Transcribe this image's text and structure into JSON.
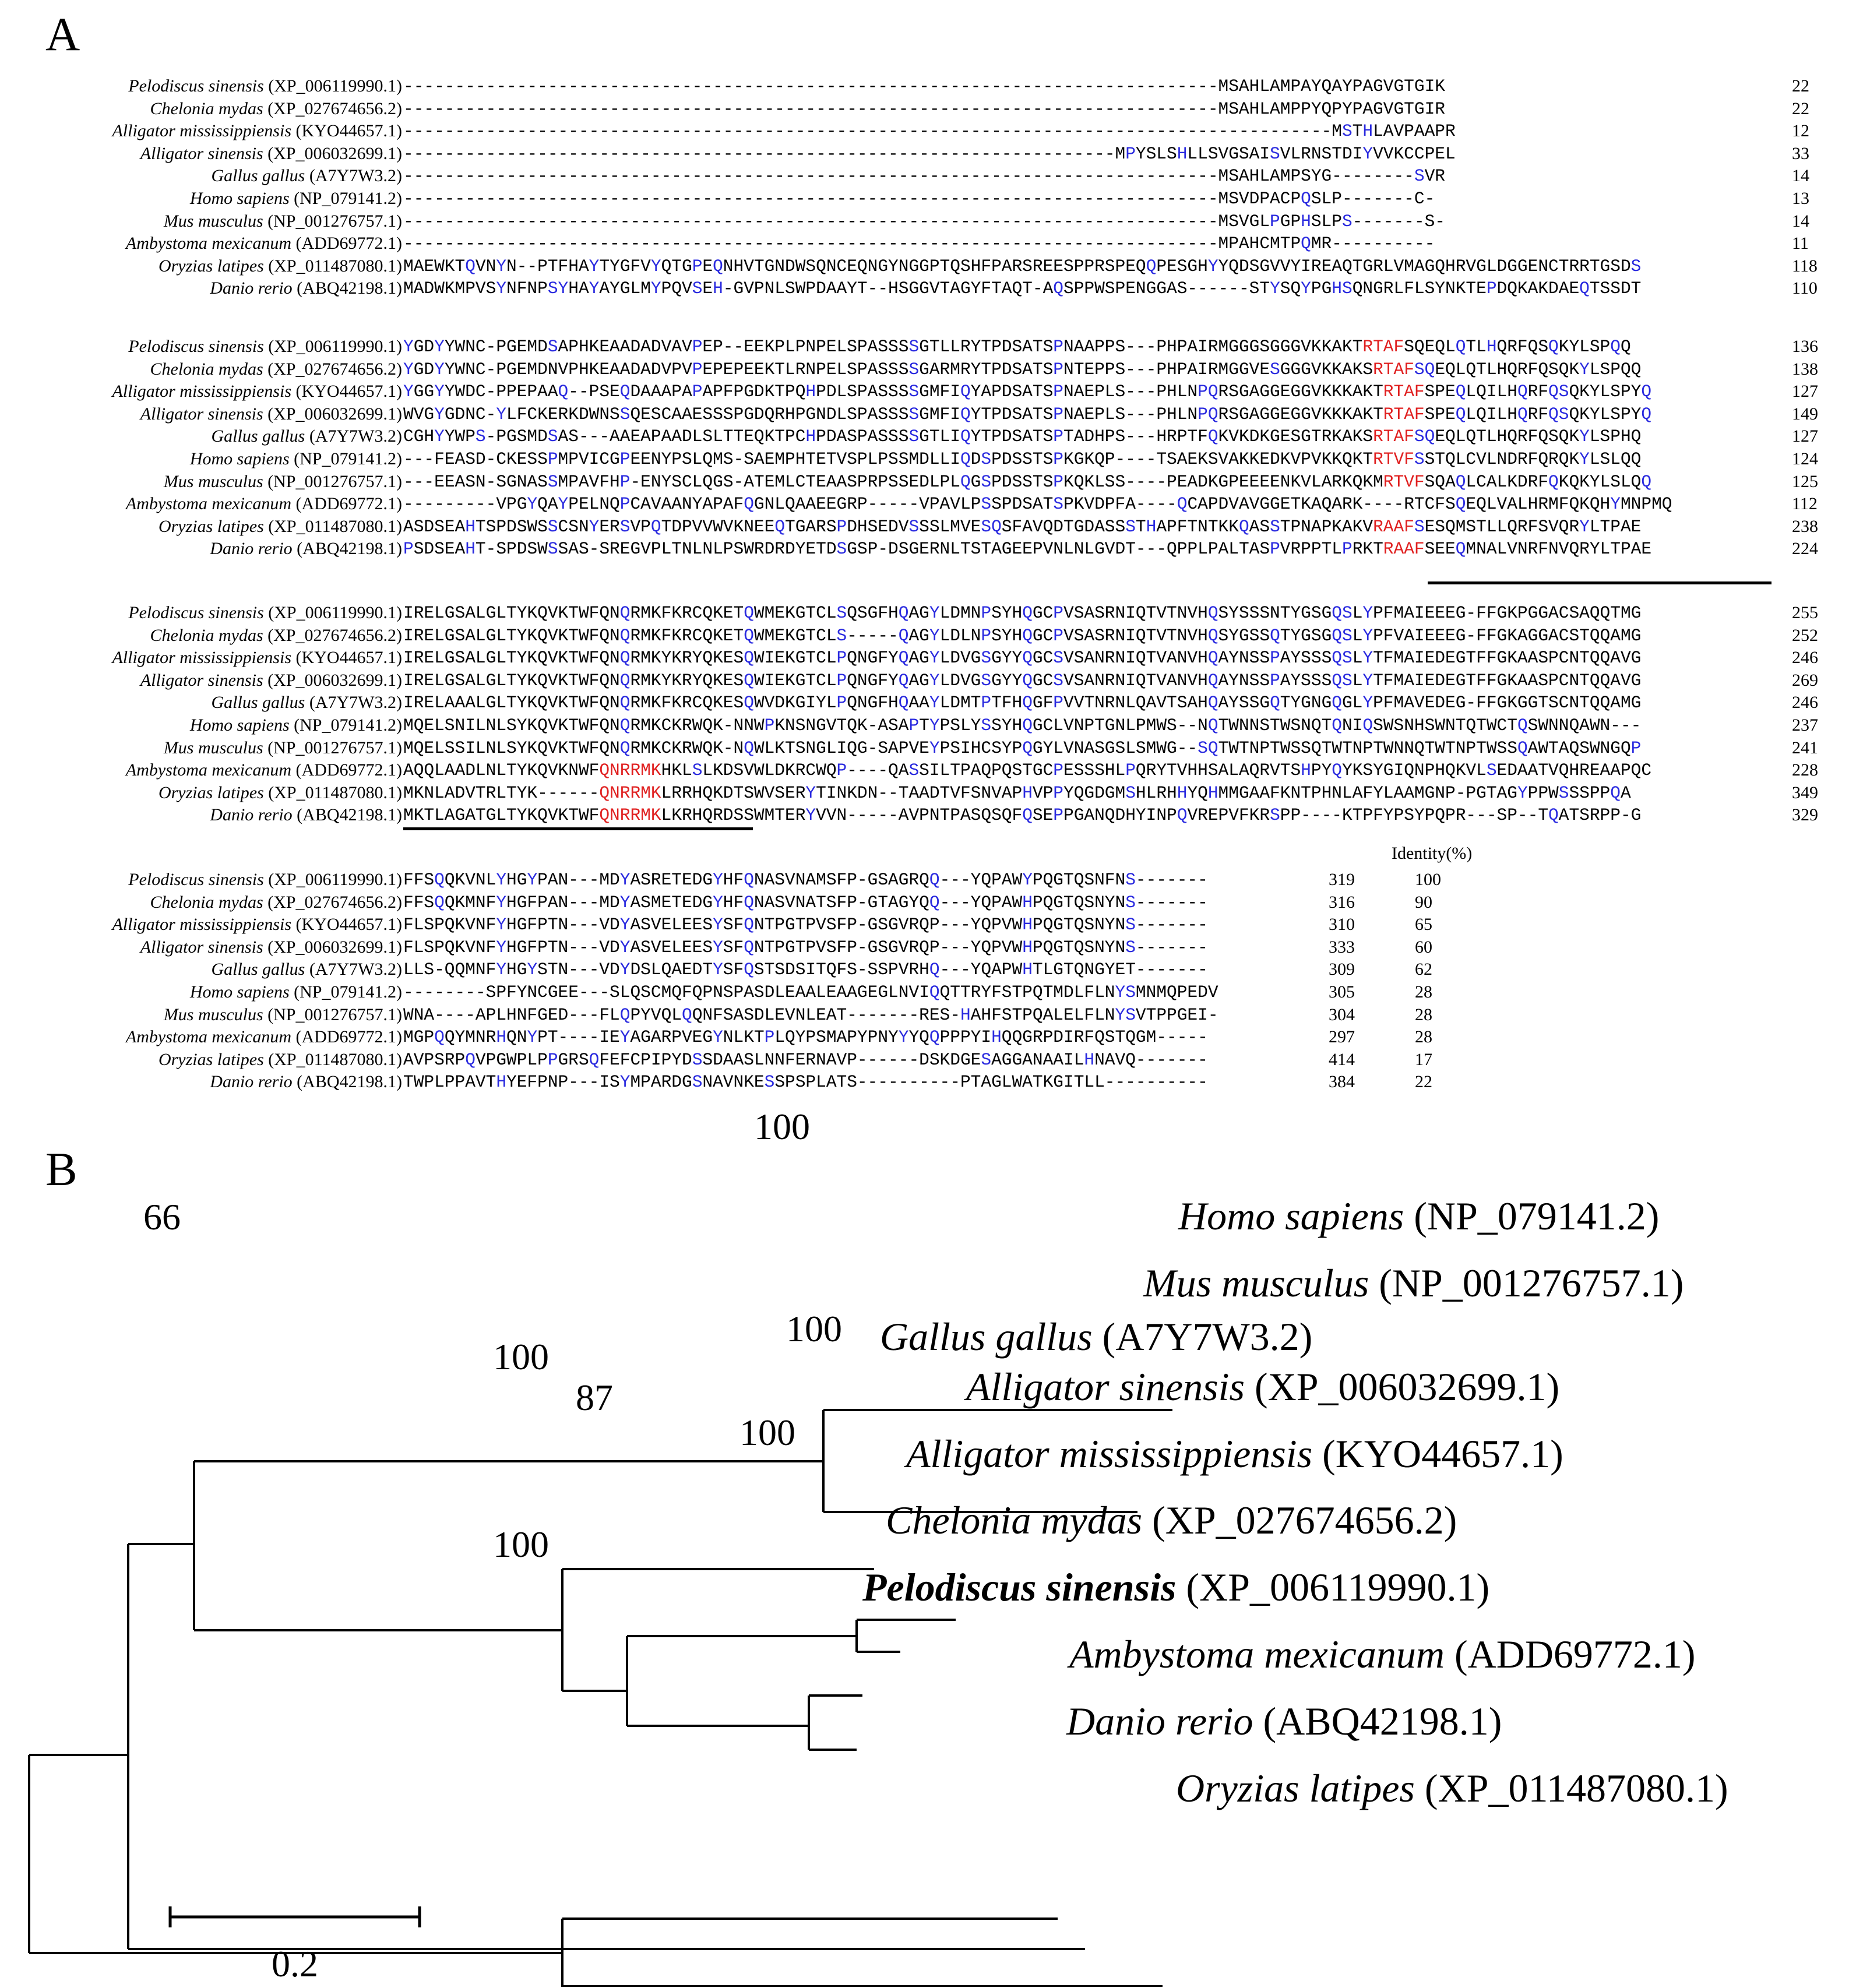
{
  "panel_a": {
    "label": "A",
    "identity_header": "Identity(%)",
    "blocks": [
      {
        "rows": [
          {
            "sp": "Pelodiscus sinensis",
            "acc": "(XP_006119990.1)",
            "seq": "-------------------------------------------------------------------------------MSAHLAMPAYQAYPAGVGTGIK",
            "end": "22"
          },
          {
            "sp": "Chelonia mydas",
            "acc": "(XP_027674656.2)",
            "seq": "-------------------------------------------------------------------------------MSAHLAMPPYQPYPAGVGTGIR",
            "end": "22"
          },
          {
            "sp": "Alligator mississippiensis",
            "acc": "(KYO44657.1)",
            "seq": "------------------------------------------------------------------------------------------MSTHLAVPAAPR",
            "end": "12"
          },
          {
            "sp": "Alligator sinensis",
            "acc": "(XP_006032699.1)",
            "seq": "---------------------------------------------------------------------MPYSLSHLLSVGSAISVLRNSTDIYVVKCCPEL",
            "end": "33"
          },
          {
            "sp": "Gallus gallus",
            "acc": "(A7Y7W3.2)",
            "seq": "-------------------------------------------------------------------------------MSAHLAMPSYG--------SVR",
            "end": "14"
          },
          {
            "sp": "Homo sapiens",
            "acc": "(NP_079141.2)",
            "seq": "-------------------------------------------------------------------------------MSVDPACPQSLP-------C-",
            "end": "13"
          },
          {
            "sp": "Mus musculus",
            "acc": "(NP_001276757.1)",
            "seq": "-------------------------------------------------------------------------------MSVGLPGPHSLPS-------S-",
            "end": "14"
          },
          {
            "sp": "Ambystoma mexicanum",
            "acc": "(ADD69772.1)",
            "seq": "-------------------------------------------------------------------------------MPAHCMTPQMR----------",
            "end": "11"
          },
          {
            "sp": "Oryzias latipes",
            "acc": "(XP_011487080.1)",
            "seq": "MAEWKTQVNYN--PTFHAYTYGFVYQTGPEQNHVTGNDWSQNCEQNGYNGGPTQSHFPARSREESPPRSPEQQPESGHYYQDSGVVYIREAQTGRLVMAGQHRVGLDGGENCTRRTGSDS",
            "end": "118"
          },
          {
            "sp": "Danio rerio",
            "acc": "(ABQ42198.1)",
            "seq": "MADWKMPVSYNFNPSYHAYAYGLMYPQVSEH-GVPNLSWPDAAYT--HSGGVTAGYFTAQT-AQSPPWSPENGGAS------STYSQYPGHSQNGRLFLSYNKTEPDQKAKDAEQTSSDT",
            "end": "110"
          }
        ]
      },
      {
        "rows": [
          {
            "sp": "Pelodiscus sinensis",
            "acc": "(XP_006119990.1)",
            "seq": "YGDYYWNC-PGEMDSAPHKEAADADVAVPEP--EEKPLPNPELSPASSSSGTLLRYTPDSATSPNAAPPS---PHPAIRMGGGSGGGVKKAKTRTAFSQEQLQTLHQRFQSQKYLSPQQ",
            "end": "136"
          },
          {
            "sp": "Chelonia mydas",
            "acc": "(XP_027674656.2)",
            "seq": "YGDYYWNC-PGEMDNVPHKEAADADVPVPEPEPEEKTLRNPELSPASSSSGARMRYTPDSATSPNTEPPS---PHPAIRMGGVESGGGVKKAKSRTAFSQEQLQTLHQRFQSQKYLSPQQ",
            "end": "138"
          },
          {
            "sp": "Alligator mississippiensis",
            "acc": "(KYO44657.1)",
            "seq": "YGGYYWDC-PPEPAAQ--PSEQDAAAPAPAPFPGDKTPQHPDLSPASSSSGMFIQYAPDSATSPNAEPLS---PHLNPQRSGAGGEGGVKKKAKTRTAFSPEQLQILHQRFQSQKYLSPYQ",
            "end": "127"
          },
          {
            "sp": "Alligator sinensis",
            "acc": "(XP_006032699.1)",
            "seq": "WVGYGDNC-YLFCKERKDWNSSQESCAAESSSPGDQRHPGNDLSPASSSSGMFIQYTPDSATSPNAEPLS---PHLNPQRSGAGGEGGVKKKAKTRTAFSPEQLQILHQRFQSQKYLSPYQ",
            "end": "149"
          },
          {
            "sp": "Gallus gallus",
            "acc": "(A7Y7W3.2)",
            "seq": "CGHYYWPS-PGSMDSAS---AAEAPAADLSLTTEQKTPCHPDASPASSSSGTLIQYTPDSATSPTADHPS---HRPTFQKVKDKGESGTRKAKSRTAFSQEQLQTLHQRFQSQKYLSPHQ",
            "end": "127"
          },
          {
            "sp": "Homo sapiens",
            "acc": "(NP_079141.2)",
            "seq": "---FEASD-CKESSPMPVICGPEENYPSLQMS-SAEMPHTETVSPLPSSMDLLIQDSPDSSTSPKGKQP----TSAEKSVAKKEDKVPVKKQKTRTVFSSTQLCVLNDRFQRQKYLSLQQ",
            "end": "124"
          },
          {
            "sp": "Mus musculus",
            "acc": "(NP_001276757.1)",
            "seq": "---EEASN-SGNASSMPAVFHP-ENYSCLQGS-ATEMLCTEAASPRPSSEDLPLQGSPDSSTSPKQKLSS----PEADKGPEEEENKVLARKQKMRTVFSQAQLCALKDRFQKQKYLSLQQ",
            "end": "125"
          },
          {
            "sp": "Ambystoma mexicanum",
            "acc": "(ADD69772.1)",
            "seq": "---------VPGYQAYPELNQPCAVAANYAPAFQGNLQAAEEGRP-----VPAVLPSSPDSATSPKVDPFA----QCAPDVAVGGETKAQARK----RTCFSQEQLVALHRMFQKQHYMNPMQ",
            "end": "112"
          },
          {
            "sp": "Oryzias latipes",
            "acc": "(XP_011487080.1)",
            "seq": "ASDSEAHTSPDSWSSCSNYERSVPQTDPVVWVKNEEQTGARSPDHSEDVSSSLMVESQSFAVQDTGDASSSTHAPFTNTKKQASSTPNAPKAKVRAAFSESQMSTLLQRFSVQRYLTPAE",
            "end": "238"
          },
          {
            "sp": "Danio rerio",
            "acc": "(ABQ42198.1)",
            "seq": "PSDSEAHT-SPDSWSSAS-SREGVPLTNLNLPSWRDRDYETDSGSP-DSGERNLTSTAGEEPVNLNLGVDT---QPPLPALTASPVRPPTLPRKTRAAFSEEQMNALVNRFNVQRYLTPAE",
            "end": "224"
          }
        ]
      },
      {
        "rows": [
          {
            "sp": "Pelodiscus sinensis",
            "acc": "(XP_006119990.1)",
            "seq": "IRELGSALGLTYKQVKTWFQNQRMKFKRCQKETQWMEKGTCLSQSGFHQAGYLDMNPSYHQGCPVSASRNIQTVTNVHQSYSSSNTYGSGQSLYPFMAIEEEG-FFGKPGGACSAQQTMG",
            "end": "255"
          },
          {
            "sp": "Chelonia mydas",
            "acc": "(XP_027674656.2)",
            "seq": "IRELGSALGLTYKQVKTWFQNQRMKFKRCQKETQWMEKGTCLS-----QAGYLDLNPSYHQGCPVSASRNIQTVTNVHQSYGSSQTYGSGQSLYPFVAIEEEG-FFGKAGGACSTQQAMG",
            "end": "252"
          },
          {
            "sp": "Alligator mississippiensis",
            "acc": "(KYO44657.1)",
            "seq": "IRELGSALGLTYKQVKTWFQNQRMKYKRYQKESQWIEKGTCLPQNGFYQAGYLDVGSGYYQGCSVSANRNIQTVANVHQAYNSSPAYSSSQSLYTFMAIEDEGTFFGKAASPCNTQQAVG",
            "end": "246"
          },
          {
            "sp": "Alligator sinensis",
            "acc": "(XP_006032699.1)",
            "seq": "IRELGSALGLTYKQVKTWFQNQRMKYKRYQKESQWIEKGTCLPQNGFYQAGYLDVGSGYYQGCSVSANRNIQTVANVHQAYNSSPAYSSSQSLYTFMAIEDEGTFFGKAASPCNTQQAVG",
            "end": "269"
          },
          {
            "sp": "Gallus gallus",
            "acc": "(A7Y7W3.2)",
            "seq": "IRELAAALGLTYKQVKTWFQNQRMKFKRCQKESQWVDKGIYLPQNGFHQAAYLDMTPTFHQGFPVVTNRNLQAVTSAHQAYSSGQTYGNGQGLYPFMAVEDEG-FFGKGGTSCNTQQAMG",
            "end": "246"
          },
          {
            "sp": "Homo sapiens",
            "acc": "(NP_079141.2)",
            "seq": "MQELSNILNLSYKQVKTWFQNQRMKCKRWQK-NNWPKNSNGVTQK-ASAPTYPSLYSSYHQGCLVNPTGNLPMWS--NQTWNNSTWSNQTQNIQSWSNHSWNTQTWCTQSWNNQAWN---",
            "end": "237"
          },
          {
            "sp": "Mus musculus",
            "acc": "(NP_001276757.1)",
            "seq": "MQELSSILNLSYKQVKTWFQNQRMKCKRWQK-NQWLKTSNGLIQG-SAPVEYPSIHCSYPQGYLVNASGSLSMWG--SQTWTNPTWSSQTWTNPTWNNQTWTNPTWSSQAWTAQSWNGQP",
            "end": "241"
          },
          {
            "sp": "Ambystoma mexicanum",
            "acc": "(ADD69772.1)",
            "seq": "AQQLAADLNLTYKQVKNWFQNRRMKHKLSLKDSVWLDKRCWQP----QASSILTPAQPQSTGCPESSSHLPQRYTVHHSALAQRVTSHPYQYKSYGIQNPHQKVLSEDAATVQHREAAPQC",
            "end": "228"
          },
          {
            "sp": "Oryzias latipes",
            "acc": "(XP_011487080.1)",
            "seq": "MKNLADVTRLTYK------QNRRMKLRRHQKDTSWVSERYTINKDN--TAADTVFSNVAPHVPPYQGDGMSHLRHHYQHMMGAAFKNTPHNLAFYLAAMGNP-PGTAGYPPWSSSPPQA",
            "end": "349"
          },
          {
            "sp": "Danio rerio",
            "acc": "(ABQ42198.1)",
            "seq": "MKTLAGATGLTYKQVKTWFQNRRMKLKRHQRDSSWMTERYVVN-----AVPNTPASQSQFQSEPPGANQDHYINPQVREPVFKRSPP----KTPFYPSYPQPR---SP--TQATSRPP-G",
            "end": "329"
          }
        ]
      },
      {
        "rows": [
          {
            "sp": "Pelodiscus sinensis",
            "acc": "(XP_006119990.1)",
            "seq": "FFSQQKVNLYHGYPAN---MDYASRETEDGYHFQNASVNAMSFP-GSAGRQQ---YQPAWYPQGTQSNFNS-------",
            "end": "319",
            "id": "100"
          },
          {
            "sp": "Chelonia mydas",
            "acc": "(XP_027674656.2)",
            "seq": "FFSQQKMNFYHGFPAN---MDYASMETEDGYHFQNASVNATSFP-GTAGYQQ---YQPAWHPQGTQSNYNS-------",
            "end": "316",
            "id": "90"
          },
          {
            "sp": "Alligator mississippiensis",
            "acc": "(KYO44657.1)",
            "seq": "FLSPQKVNFYHGFPTN---VDYASVELEESYSFQNTPGTPVSFP-GSGVRQP---YQPVWHPQGTQSNYNS-------",
            "end": "310",
            "id": "65"
          },
          {
            "sp": "Alligator sinensis",
            "acc": "(XP_006032699.1)",
            "seq": "FLSPQKVNFYHGFPTN---VDYASVELEESYSFQNTPGTPVSFP-GSGVRQP---YQPVWHPQGTQSNYNS-------",
            "end": "333",
            "id": "60"
          },
          {
            "sp": "Gallus gallus",
            "acc": "(A7Y7W3.2)",
            "seq": "LLS-QQMNFYHGYSTN---VDYDSLQAEDTYSFQSTSDSITQFS-SSPVRHQ---YQAPWHTLGTQNGYET-------",
            "end": "309",
            "id": "62"
          },
          {
            "sp": "Homo sapiens",
            "acc": "(NP_079141.2)",
            "seq": "--------SPFYNCGEE---SLQSCMQFQPNSPASDLEAALEAAGEGLNVIQQTTRYFSTPQTMDLFLNYSMNMQPEDV",
            "end": "305",
            "id": "28"
          },
          {
            "sp": "Mus musculus",
            "acc": "(NP_001276757.1)",
            "seq": "WNA----APLHNFGED---FLQPYVQLQQNFSASDLEVNLEAT-------RES-HAHFSTPQALELFLNYSVTPPGEI-",
            "end": "304",
            "id": "28"
          },
          {
            "sp": "Ambystoma mexicanum",
            "acc": "(ADD69772.1)",
            "seq": "MGPQQYMNRHQNYPT----IEYAGARPVEGYNLKTPLQYPSMAPYPNYYYQQPPPYIHQQGRPDIRFQSTQGM-----",
            "end": "297",
            "id": "28"
          },
          {
            "sp": "Oryzias latipes",
            "acc": "(XP_011487080.1)",
            "seq": "AVPSRPQVPGWPLPPGRSQFEFCPIPYDSSDAASLNNFERNAVP------DSKDGESAGGANAAILHNAVQ-------",
            "end": "414",
            "id": "17"
          },
          {
            "sp": "Danio rerio",
            "acc": "(ABQ42198.1)",
            "seq": "TWPLPPAVTHYEFPNP---ISYMPARDGSNAVNKESSPSPLATS----------PTAGLWATKGITLL----------",
            "end": "384",
            "id": "22"
          }
        ]
      }
    ]
  },
  "panel_b": {
    "label": "B",
    "scale_bar_label": "0.2",
    "bootstrap_values": [
      "100",
      "66",
      "100",
      "100",
      "87",
      "100",
      "100"
    ],
    "taxa": [
      {
        "species": "Homo sapiens",
        "accession": "(NP_079141.2)",
        "bold": false
      },
      {
        "species": "Mus musculus",
        "accession": "(NP_001276757.1)",
        "bold": false
      },
      {
        "species": "Gallus gallus",
        "accession": "(A7Y7W3.2)",
        "bold": false
      },
      {
        "species": "Alligator sinensis",
        "accession": "(XP_006032699.1)",
        "bold": false
      },
      {
        "species": "Alligator mississippiensis",
        "accession": "(KYO44657.1)",
        "bold": false
      },
      {
        "species": "Chelonia mydas",
        "accession": "(XP_027674656.2)",
        "bold": false
      },
      {
        "species": "Pelodiscus sinensis",
        "accession": "(XP_006119990.1)",
        "bold": true
      },
      {
        "species": "Ambystoma mexicanum",
        "accession": "(ADD69772.1)",
        "bold": false
      },
      {
        "species": "Danio rerio",
        "accession": "(ABQ42198.1)",
        "bold": false
      },
      {
        "species": "Oryzias latipes",
        "accession": "(XP_011487080.1)",
        "bold": false
      }
    ],
    "colors": {
      "line": "#000000",
      "conserved_blue": "#2a2adf",
      "conserved_red": "#e02020"
    }
  }
}
